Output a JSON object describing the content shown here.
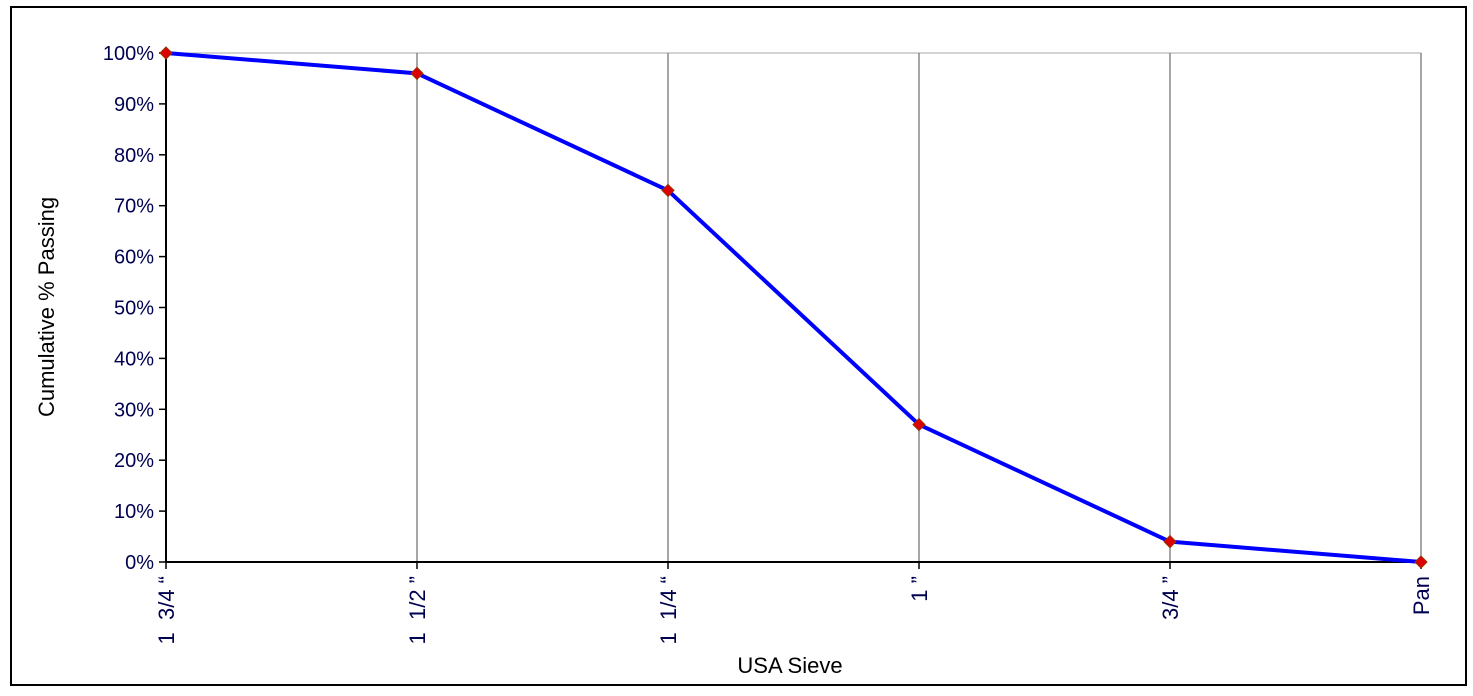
{
  "chart_data": {
    "type": "line",
    "title": "",
    "xlabel": "USA Sieve",
    "ylabel": "Cumulative % Passing",
    "categories": [
      "1  3/4 “",
      "1  1/2 ”",
      "1  1/4 “",
      "1 ”",
      "3/4 ”",
      "Pan"
    ],
    "y_tick_labels": [
      "0%",
      "10%",
      "20%",
      "30%",
      "40%",
      "50%",
      "60%",
      "70%",
      "80%",
      "90%",
      "100%"
    ],
    "series": [
      {
        "values": [
          100,
          96,
          73,
          27,
          4,
          0
        ]
      }
    ],
    "ylim": [
      0,
      100
    ],
    "grid": {
      "vertical": true,
      "horizontal": false
    },
    "legend": "none",
    "colors": {
      "line": "#0000ff",
      "marker": "#dd0000",
      "marker_outline": "#993300",
      "grid": "#888888",
      "axis": "#000000",
      "tick_text": "#000050",
      "label_text": "#000000",
      "plot_border": "#aaaaaa",
      "frame": "#000000"
    }
  }
}
